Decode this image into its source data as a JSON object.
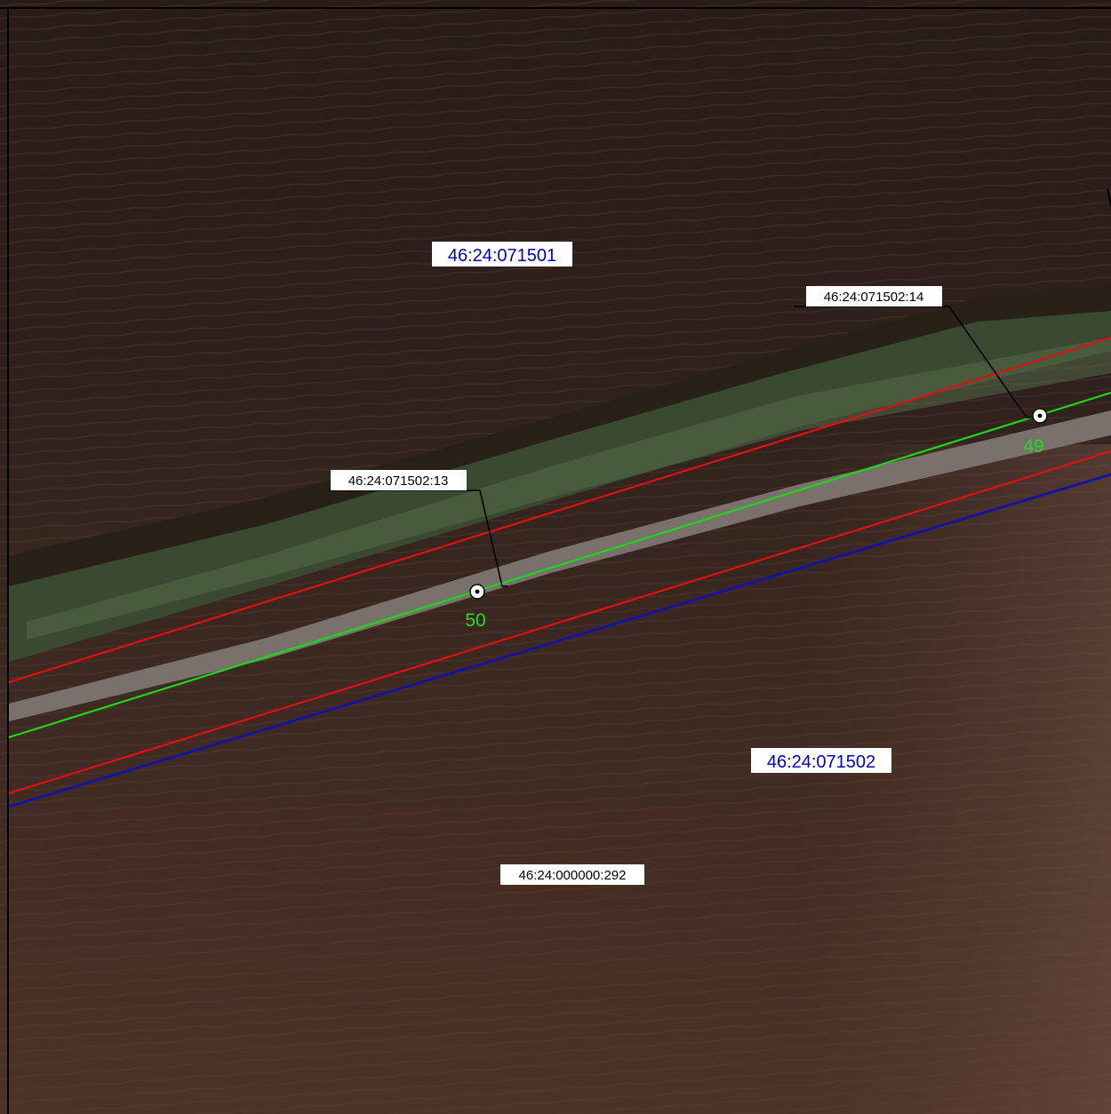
{
  "map": {
    "quarter_labels": [
      {
        "id": "north",
        "text": "46:24:071501",
        "color": "#0000cc"
      },
      {
        "id": "south",
        "text": "46:24:071502",
        "color": "#0000cc"
      }
    ],
    "parcel_labels": [
      {
        "id": "p14",
        "text": "46:24:071502:14"
      },
      {
        "id": "p13",
        "text": "46:24:071502:13"
      },
      {
        "id": "p292",
        "text": "46:24:000000:292"
      }
    ],
    "points": [
      {
        "id": "pt49",
        "number": "49"
      },
      {
        "id": "pt50",
        "number": "50"
      }
    ],
    "colors": {
      "boundary_red": "#e01010",
      "boundary_green": "#18d818",
      "boundary_blue": "#1414a0",
      "point_label": "#22dd22",
      "leader_line": "#000000",
      "label_background": "#ffffff",
      "frame": "#000000"
    }
  }
}
